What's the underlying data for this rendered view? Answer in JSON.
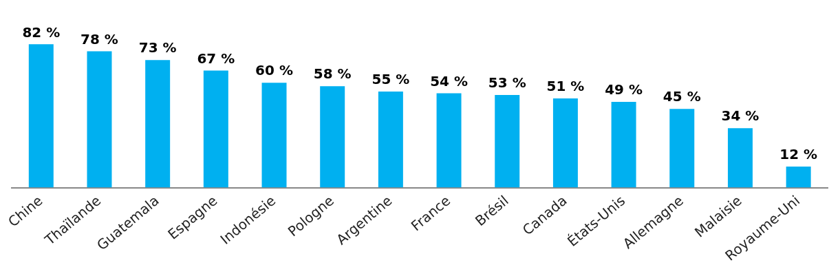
{
  "chart_data": {
    "type": "bar",
    "categories": [
      "Chine",
      "Thaïlande",
      "Guatemala",
      "Espagne",
      "Indonésie",
      "Pologne",
      "Argentine",
      "France",
      "Brésil",
      "Canada",
      "États-Unis",
      "Allemagne",
      "Malaisie",
      "Royaume-Uni"
    ],
    "values": [
      82,
      78,
      73,
      67,
      60,
      58,
      55,
      54,
      53,
      51,
      49,
      45,
      34,
      12
    ],
    "value_labels": [
      "82 %",
      "78 %",
      "73 %",
      "67 %",
      "60 %",
      "58 %",
      "55 %",
      "54 %",
      "53 %",
      "51 %",
      "49 %",
      "45 %",
      "34 %",
      "12 %"
    ],
    "color": "#00b0f0",
    "tick_labels": "x",
    "grid": false,
    "legend": false
  }
}
